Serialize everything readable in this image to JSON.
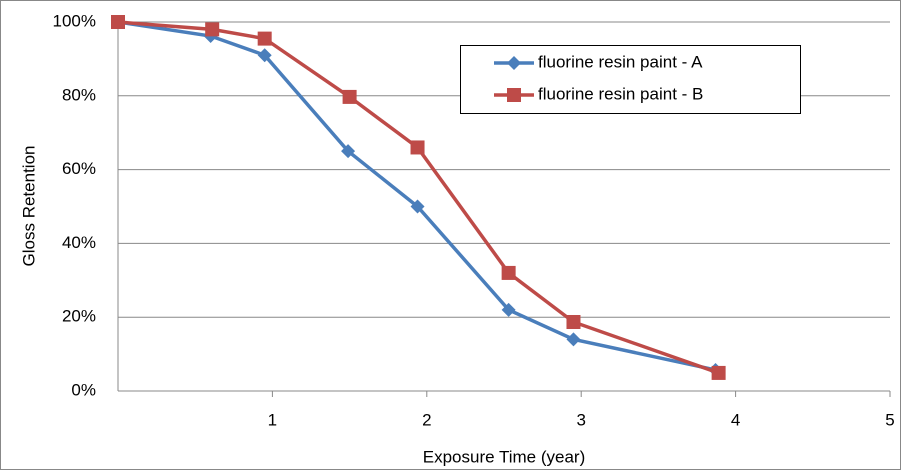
{
  "chart_data": {
    "type": "line",
    "y_axis_label": "Gloss Retention",
    "x_axis_label": "Exposure Time (year)",
    "xlim": [
      0,
      5
    ],
    "xticks": [
      1,
      2,
      3,
      4,
      5
    ],
    "ylim": [
      0,
      100
    ],
    "yticks": [
      {
        "value": 0,
        "label": "0%"
      },
      {
        "value": 20,
        "label": "20%"
      },
      {
        "value": 40,
        "label": "40%"
      },
      {
        "value": 60,
        "label": "60%"
      },
      {
        "value": 80,
        "label": "80%"
      },
      {
        "value": 100,
        "label": "100%"
      }
    ],
    "grid": true,
    "legend": "upper right",
    "series": [
      {
        "name": "fluorine resin paint - A",
        "color": "#4a7ebb",
        "marker": "diamond",
        "x": [
          0,
          0.6,
          0.95,
          1.49,
          1.94,
          2.53,
          2.95,
          3.87
        ],
        "values": [
          100,
          96.2,
          91,
          65,
          50,
          22,
          14,
          5.7
        ]
      },
      {
        "name": "fluorine resin paint - B",
        "color": "#be4b48",
        "marker": "square",
        "x": [
          0,
          0.61,
          0.95,
          1.5,
          1.94,
          2.53,
          2.95,
          3.89
        ],
        "values": [
          100,
          98,
          95.5,
          79.7,
          66,
          32,
          18.7,
          4.9
        ]
      }
    ]
  }
}
